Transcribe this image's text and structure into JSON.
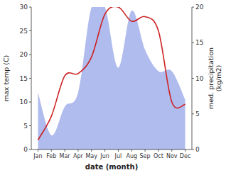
{
  "chart_data": {
    "type": "line",
    "categories": [
      "Jan",
      "Feb",
      "Mar",
      "Apr",
      "May",
      "Jun",
      "Jul",
      "Aug",
      "Sep",
      "Oct",
      "Nov",
      "Dec"
    ],
    "series": [
      {
        "type": "area",
        "color": "#b0bcee",
        "axis": "y2",
        "values": [
          8.0,
          2.0,
          6.0,
          8.0,
          20.0,
          20.0,
          11.5,
          19.5,
          14.0,
          11.0,
          11.0,
          7.0
        ]
      },
      {
        "type": "line",
        "color": "#cc2222",
        "values": [
          2.0,
          7.0,
          15.5,
          16.0,
          19.5,
          28.5,
          30.0,
          27.0,
          28.0,
          25.0,
          10.0,
          9.5
        ]
      }
    ],
    "x_label": "date (month)",
    "y_label": "max temp (C)",
    "y2_label": "med. precipitation\n(kg/m2)",
    "ylim": [
      0,
      30
    ],
    "yticks": [
      0,
      5,
      10,
      15,
      20,
      25,
      30
    ],
    "y2lim": [
      0,
      20
    ],
    "y2ticks": [
      0,
      5,
      10,
      15,
      20
    ],
    "grid": false
  }
}
